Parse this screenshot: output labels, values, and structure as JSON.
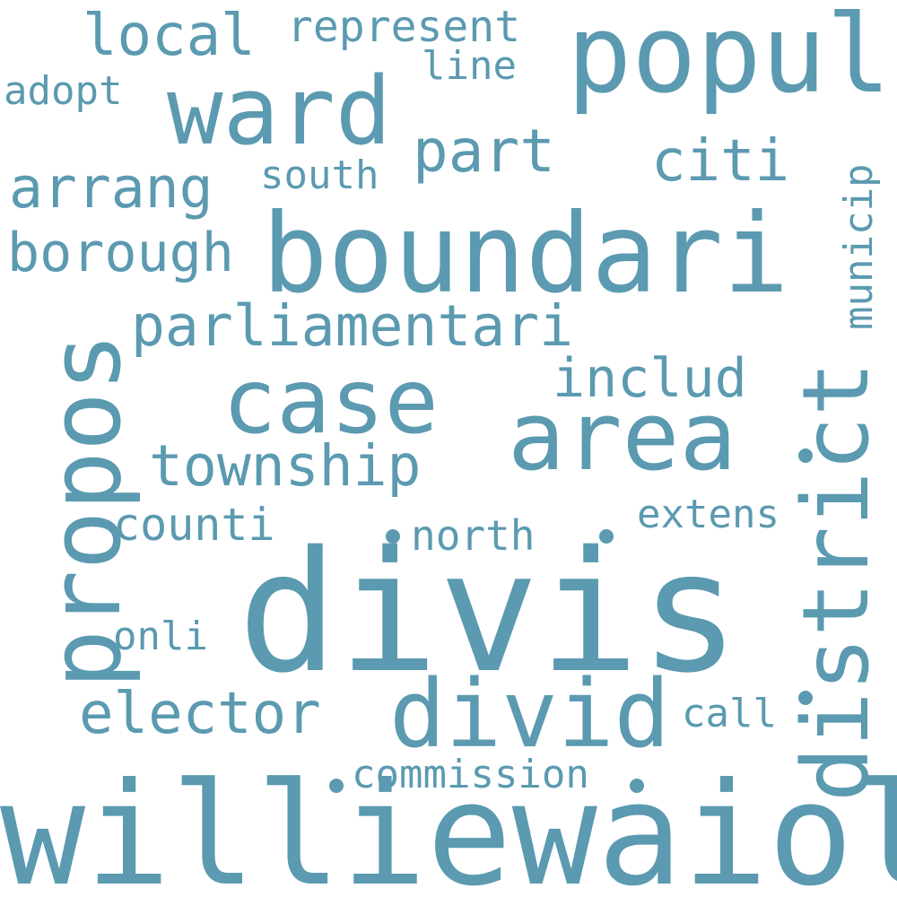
{
  "color": "#5b9ab0",
  "words": {
    "willie_waiola": "williewaiola",
    "divis": "divis",
    "boundari": "boundari",
    "popul": "popul",
    "ward": "ward",
    "area": "area",
    "case": "case",
    "propos": "propos",
    "district": "district",
    "divid": "divid",
    "parliamentari": "parliamentari",
    "township": "township",
    "arrang": "arrang",
    "borough": "borough",
    "local": "local",
    "represent": "represent",
    "part": "part",
    "citi": "citi",
    "municip": "municip",
    "includ": "includ",
    "elector": "elector",
    "counti": "counti",
    "north": "north",
    "extens": "extens",
    "commission": "commission",
    "onli": "onli",
    "call": "call",
    "adopt": "adopt",
    "line": "line",
    "south": "south"
  }
}
